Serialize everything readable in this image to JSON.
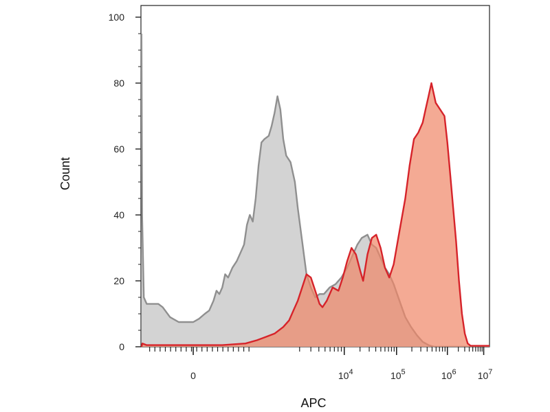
{
  "chart_data": {
    "type": "area",
    "xlabel": "APC",
    "ylabel": "Count",
    "ylim": [
      0,
      100
    ],
    "y_ticks": [
      {
        "value": 0,
        "label": "0"
      },
      {
        "value": 20,
        "label": "20"
      },
      {
        "value": 40,
        "label": "40"
      },
      {
        "value": 60,
        "label": "60"
      },
      {
        "value": 80,
        "label": "80"
      },
      {
        "value": 100,
        "label": "100"
      }
    ],
    "x_scale": "biexponential",
    "x_ticks": [
      {
        "label": "0",
        "base": "0",
        "exp": ""
      },
      {
        "label": "10^4",
        "base": "10",
        "exp": "4"
      },
      {
        "label": "10^5",
        "base": "10",
        "exp": "5"
      },
      {
        "label": "10^6",
        "base": "10",
        "exp": "6"
      },
      {
        "label": "10^7",
        "base": "10",
        "exp": "7"
      }
    ],
    "x_tick_positions": [
      0,
      0.52,
      0.7,
      0.875,
      1.0
    ],
    "x_range_note": "x values expressed on display scale from -0.18 (left edge) to 1.02 (right edge)",
    "x_display_range": [
      -0.18,
      1.02
    ],
    "series": [
      {
        "fill": "#d3d3d3",
        "stroke": "#8f8f8f",
        "fill_opacity": 1,
        "points": [
          [
            -0.178,
            95
          ],
          [
            -0.176,
            40
          ],
          [
            -0.17,
            15
          ],
          [
            -0.16,
            13
          ],
          [
            -0.12,
            13
          ],
          [
            -0.105,
            12
          ],
          [
            -0.08,
            9
          ],
          [
            -0.05,
            7.5
          ],
          [
            -0.02,
            7.5
          ],
          [
            0.0,
            7.5
          ],
          [
            0.02,
            8.5
          ],
          [
            0.04,
            10
          ],
          [
            0.055,
            11
          ],
          [
            0.07,
            14
          ],
          [
            0.08,
            17
          ],
          [
            0.09,
            16
          ],
          [
            0.1,
            18
          ],
          [
            0.11,
            22
          ],
          [
            0.12,
            21
          ],
          [
            0.135,
            24
          ],
          [
            0.15,
            26
          ],
          [
            0.165,
            29
          ],
          [
            0.175,
            31
          ],
          [
            0.185,
            37
          ],
          [
            0.195,
            40
          ],
          [
            0.205,
            38
          ],
          [
            0.215,
            45
          ],
          [
            0.225,
            55
          ],
          [
            0.235,
            62
          ],
          [
            0.245,
            63
          ],
          [
            0.26,
            64
          ],
          [
            0.27,
            67
          ],
          [
            0.28,
            71
          ],
          [
            0.29,
            76
          ],
          [
            0.3,
            72
          ],
          [
            0.31,
            63
          ],
          [
            0.32,
            58
          ],
          [
            0.335,
            56
          ],
          [
            0.35,
            50
          ],
          [
            0.36,
            42
          ],
          [
            0.375,
            32
          ],
          [
            0.39,
            22
          ],
          [
            0.405,
            18
          ],
          [
            0.42,
            15
          ],
          [
            0.435,
            16
          ],
          [
            0.45,
            16
          ],
          [
            0.47,
            18
          ],
          [
            0.49,
            19
          ],
          [
            0.51,
            21
          ],
          [
            0.53,
            24
          ],
          [
            0.55,
            28
          ],
          [
            0.565,
            31
          ],
          [
            0.58,
            33
          ],
          [
            0.6,
            34
          ],
          [
            0.615,
            31
          ],
          [
            0.63,
            30
          ],
          [
            0.645,
            27
          ],
          [
            0.66,
            24
          ],
          [
            0.675,
            22
          ],
          [
            0.69,
            19
          ],
          [
            0.71,
            14
          ],
          [
            0.73,
            9
          ],
          [
            0.75,
            6
          ],
          [
            0.77,
            3.5
          ],
          [
            0.79,
            1.5
          ],
          [
            0.81,
            0.5
          ],
          [
            0.83,
            0
          ],
          [
            1.02,
            0
          ]
        ]
      },
      {
        "fill": "#f08666",
        "stroke": "#d6232a",
        "fill_opacity": 0.7,
        "points": [
          [
            -0.178,
            0
          ],
          [
            -0.175,
            1
          ],
          [
            -0.16,
            0.5
          ],
          [
            0.0,
            0.5
          ],
          [
            0.1,
            0.5
          ],
          [
            0.18,
            1
          ],
          [
            0.22,
            2
          ],
          [
            0.25,
            3
          ],
          [
            0.28,
            4
          ],
          [
            0.31,
            6
          ],
          [
            0.33,
            8
          ],
          [
            0.345,
            11
          ],
          [
            0.36,
            14
          ],
          [
            0.375,
            18
          ],
          [
            0.39,
            22
          ],
          [
            0.405,
            21
          ],
          [
            0.42,
            17
          ],
          [
            0.435,
            13
          ],
          [
            0.445,
            12
          ],
          [
            0.46,
            14
          ],
          [
            0.48,
            18
          ],
          [
            0.5,
            17
          ],
          [
            0.515,
            21
          ],
          [
            0.53,
            26
          ],
          [
            0.545,
            30
          ],
          [
            0.56,
            28
          ],
          [
            0.575,
            23
          ],
          [
            0.585,
            20
          ],
          [
            0.6,
            28
          ],
          [
            0.615,
            33
          ],
          [
            0.63,
            34
          ],
          [
            0.645,
            30
          ],
          [
            0.66,
            24
          ],
          [
            0.675,
            21
          ],
          [
            0.69,
            25
          ],
          [
            0.71,
            35
          ],
          [
            0.73,
            45
          ],
          [
            0.745,
            55
          ],
          [
            0.76,
            63
          ],
          [
            0.775,
            65
          ],
          [
            0.79,
            68
          ],
          [
            0.8,
            72
          ],
          [
            0.81,
            76
          ],
          [
            0.82,
            80
          ],
          [
            0.835,
            74
          ],
          [
            0.85,
            72
          ],
          [
            0.865,
            70
          ],
          [
            0.875,
            62
          ],
          [
            0.885,
            52
          ],
          [
            0.895,
            42
          ],
          [
            0.905,
            32
          ],
          [
            0.915,
            20
          ],
          [
            0.925,
            10
          ],
          [
            0.935,
            4
          ],
          [
            0.945,
            1
          ],
          [
            0.955,
            0.3
          ],
          [
            0.97,
            0.3
          ],
          [
            1.02,
            0.3
          ]
        ]
      }
    ]
  }
}
